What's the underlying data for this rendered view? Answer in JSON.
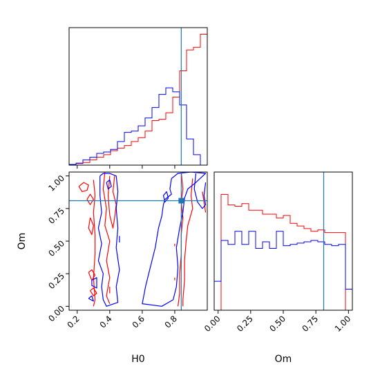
{
  "chart_data": {
    "type": "corner",
    "params": [
      {
        "name": "H0",
        "range": [
          0.15,
          1.0
        ],
        "ticks": [
          0.2,
          0.4,
          0.6,
          0.8
        ],
        "tick_labels": [
          "0.2",
          "0.4",
          "0.6",
          "0.8"
        ],
        "truth": 0.84
      },
      {
        "name": "Om",
        "range": [
          -0.03,
          1.03
        ],
        "ticks": [
          0.0,
          0.25,
          0.5,
          0.75,
          1.0
        ],
        "tick_labels": [
          "0.00",
          "0.25",
          "0.50",
          "0.75",
          "1.00"
        ],
        "truth": 0.81
      }
    ],
    "truth_color": "#1f77b4",
    "series_colors": {
      "red": "#ff0000",
      "blue": "#0000ff"
    },
    "hist_H0": {
      "edges": [
        0.15,
        0.1925,
        0.235,
        0.2775,
        0.32,
        0.3625,
        0.405,
        0.4475,
        0.49,
        0.5325,
        0.575,
        0.6175,
        0.66,
        0.7025,
        0.745,
        0.7875,
        0.83,
        0.8725,
        0.915,
        0.9575,
        1.0
      ],
      "red": [
        0.005,
        0.012,
        0.02,
        0.04,
        0.06,
        0.08,
        0.11,
        0.13,
        0.15,
        0.18,
        0.21,
        0.26,
        0.34,
        0.35,
        0.4,
        0.52,
        0.72,
        0.88,
        0.9,
        1.0
      ],
      "blue": [
        0.005,
        0.015,
        0.04,
        0.06,
        0.09,
        0.1,
        0.12,
        0.18,
        0.25,
        0.26,
        0.3,
        0.36,
        0.44,
        0.54,
        0.59,
        0.56,
        0.46,
        0.2,
        0.08,
        0.0
      ]
    },
    "hist_Om": {
      "edges": [
        -0.03,
        0.023,
        0.076,
        0.129,
        0.182,
        0.235,
        0.288,
        0.341,
        0.394,
        0.447,
        0.5,
        0.553,
        0.606,
        0.659,
        0.712,
        0.765,
        0.818,
        0.871,
        0.924,
        0.977,
        1.03
      ],
      "red": [
        0.0,
        0.88,
        0.8,
        0.79,
        0.81,
        0.76,
        0.76,
        0.73,
        0.73,
        0.7,
        0.72,
        0.66,
        0.64,
        0.62,
        0.6,
        0.61,
        0.59,
        0.59,
        0.59,
        0.0
      ],
      "blue": [
        0.22,
        0.53,
        0.5,
        0.6,
        0.5,
        0.6,
        0.47,
        0.52,
        0.47,
        0.6,
        0.49,
        0.5,
        0.51,
        0.52,
        0.53,
        0.52,
        0.5,
        0.49,
        0.5,
        0.16
      ]
    },
    "contours": [
      {
        "color": "red",
        "points": [
          [
            0.3,
            0.97
          ],
          [
            0.31,
            0.85
          ],
          [
            0.3,
            0.72
          ],
          [
            0.31,
            0.55
          ],
          [
            0.31,
            0.4
          ],
          [
            0.3,
            0.22
          ],
          [
            0.31,
            0.05
          ],
          [
            0.3,
            0.0
          ]
        ]
      },
      {
        "color": "red",
        "points": [
          [
            0.37,
            1.03
          ],
          [
            0.36,
            0.9
          ],
          [
            0.38,
            0.75
          ],
          [
            0.37,
            0.62
          ],
          [
            0.4,
            0.5
          ],
          [
            0.38,
            0.35
          ],
          [
            0.4,
            0.22
          ],
          [
            0.38,
            0.08
          ],
          [
            0.4,
            0.02
          ]
        ]
      },
      {
        "color": "red",
        "points": [
          [
            0.43,
            1.0
          ],
          [
            0.42,
            0.88
          ],
          [
            0.44,
            0.78
          ],
          [
            0.43,
            0.68
          ],
          [
            0.42,
            0.6
          ],
          [
            0.4,
            0.7
          ],
          [
            0.39,
            0.85
          ],
          [
            0.4,
            1.0
          ]
        ]
      },
      {
        "color": "red",
        "points": [
          [
            0.21,
            0.92
          ],
          [
            0.24,
            0.95
          ],
          [
            0.27,
            0.93
          ],
          [
            0.26,
            0.89
          ],
          [
            0.23,
            0.88
          ],
          [
            0.21,
            0.92
          ]
        ]
      },
      {
        "color": "red",
        "points": [
          [
            0.26,
            0.82
          ],
          [
            0.28,
            0.86
          ],
          [
            0.3,
            0.82
          ],
          [
            0.28,
            0.78
          ],
          [
            0.26,
            0.82
          ]
        ]
      },
      {
        "color": "red",
        "points": [
          [
            0.28,
            0.68
          ],
          [
            0.3,
            0.62
          ],
          [
            0.29,
            0.55
          ],
          [
            0.27,
            0.6
          ],
          [
            0.28,
            0.68
          ]
        ]
      },
      {
        "color": "red",
        "points": [
          [
            0.27,
            0.26
          ],
          [
            0.29,
            0.28
          ],
          [
            0.31,
            0.24
          ],
          [
            0.29,
            0.2
          ],
          [
            0.27,
            0.26
          ]
        ]
      },
      {
        "color": "red",
        "points": [
          [
            0.28,
            0.12
          ],
          [
            0.3,
            0.14
          ],
          [
            0.32,
            0.1
          ],
          [
            0.3,
            0.08
          ],
          [
            0.28,
            0.12
          ]
        ]
      },
      {
        "color": "red",
        "points": [
          [
            0.4,
            0.15
          ],
          [
            0.4,
            0.1
          ]
        ]
      },
      {
        "color": "red",
        "points": [
          [
            0.84,
            1.03
          ],
          [
            0.85,
            0.9
          ],
          [
            0.84,
            0.8
          ],
          [
            0.85,
            0.68
          ],
          [
            0.84,
            0.55
          ],
          [
            0.84,
            0.4
          ],
          [
            0.83,
            0.25
          ],
          [
            0.83,
            0.1
          ],
          [
            0.82,
            0.0
          ]
        ]
      },
      {
        "color": "red",
        "points": [
          [
            0.91,
            0.98
          ],
          [
            0.9,
            0.85
          ],
          [
            0.91,
            0.75
          ],
          [
            0.88,
            0.62
          ],
          [
            0.87,
            0.5
          ],
          [
            0.86,
            0.35
          ],
          [
            0.86,
            0.2
          ],
          [
            0.85,
            0.05
          ],
          [
            0.85,
            0.0
          ]
        ]
      },
      {
        "color": "red",
        "points": [
          [
            0.97,
            0.88
          ],
          [
            0.98,
            0.8
          ],
          [
            0.99,
            0.72
          ]
        ]
      },
      {
        "color": "red",
        "points": [
          [
            0.8,
            0.48
          ],
          [
            0.8,
            0.46
          ]
        ]
      },
      {
        "color": "red",
        "points": [
          [
            0.8,
            0.22
          ],
          [
            0.8,
            0.2
          ]
        ]
      },
      {
        "color": "blue",
        "points": [
          [
            0.34,
            1.0
          ],
          [
            0.34,
            0.85
          ],
          [
            0.35,
            0.72
          ],
          [
            0.33,
            0.6
          ],
          [
            0.35,
            0.48
          ],
          [
            0.33,
            0.35
          ],
          [
            0.36,
            0.25
          ],
          [
            0.35,
            0.15
          ],
          [
            0.36,
            0.05
          ],
          [
            0.38,
            0.0
          ],
          [
            0.45,
            0.03
          ],
          [
            0.44,
            0.15
          ],
          [
            0.46,
            0.28
          ],
          [
            0.44,
            0.45
          ],
          [
            0.45,
            0.6
          ],
          [
            0.44,
            0.75
          ],
          [
            0.45,
            0.88
          ],
          [
            0.44,
            1.0
          ],
          [
            0.4,
            1.02
          ],
          [
            0.36,
            1.02
          ],
          [
            0.34,
            1.0
          ]
        ]
      },
      {
        "color": "blue",
        "points": [
          [
            0.38,
            0.95
          ],
          [
            0.4,
            0.97
          ],
          [
            0.41,
            0.92
          ],
          [
            0.39,
            0.9
          ],
          [
            0.38,
            0.95
          ]
        ]
      },
      {
        "color": "blue",
        "points": [
          [
            0.29,
            0.2
          ],
          [
            0.32,
            0.22
          ],
          [
            0.32,
            0.14
          ],
          [
            0.29,
            0.16
          ],
          [
            0.29,
            0.2
          ]
        ]
      },
      {
        "color": "blue",
        "points": [
          [
            0.27,
            0.06
          ],
          [
            0.29,
            0.08
          ],
          [
            0.3,
            0.04
          ],
          [
            0.27,
            0.06
          ]
        ]
      },
      {
        "color": "blue",
        "points": [
          [
            0.46,
            0.54
          ],
          [
            0.46,
            0.49
          ]
        ]
      },
      {
        "color": "blue",
        "points": [
          [
            0.78,
            0.98
          ],
          [
            0.77,
            0.9
          ],
          [
            0.78,
            0.86
          ],
          [
            0.74,
            0.82
          ],
          [
            0.73,
            0.78
          ],
          [
            0.72,
            0.69
          ],
          [
            0.7,
            0.6
          ],
          [
            0.68,
            0.45
          ],
          [
            0.65,
            0.3
          ],
          [
            0.62,
            0.15
          ],
          [
            0.6,
            0.02
          ],
          [
            0.72,
            0.0
          ],
          [
            0.79,
            0.05
          ],
          [
            0.81,
            0.15
          ],
          [
            0.82,
            0.3
          ],
          [
            0.81,
            0.45
          ],
          [
            0.83,
            0.6
          ],
          [
            0.85,
            0.72
          ],
          [
            0.86,
            0.83
          ],
          [
            0.88,
            0.9
          ],
          [
            0.93,
            0.95
          ],
          [
            0.99,
            1.02
          ],
          [
            0.9,
            1.03
          ],
          [
            0.82,
            1.02
          ],
          [
            0.78,
            0.98
          ]
        ]
      },
      {
        "color": "blue",
        "points": [
          [
            0.93,
            1.02
          ],
          [
            0.92,
            0.9
          ],
          [
            0.94,
            0.8
          ],
          [
            0.97,
            0.75
          ],
          [
            0.99,
            0.78
          ],
          [
            0.98,
            0.85
          ],
          [
            0.99,
            0.95
          ]
        ]
      },
      {
        "color": "blue",
        "points": [
          [
            0.75,
            0.88
          ],
          [
            0.73,
            0.85
          ],
          [
            0.74,
            0.8
          ],
          [
            0.76,
            0.83
          ],
          [
            0.75,
            0.88
          ]
        ]
      }
    ]
  }
}
